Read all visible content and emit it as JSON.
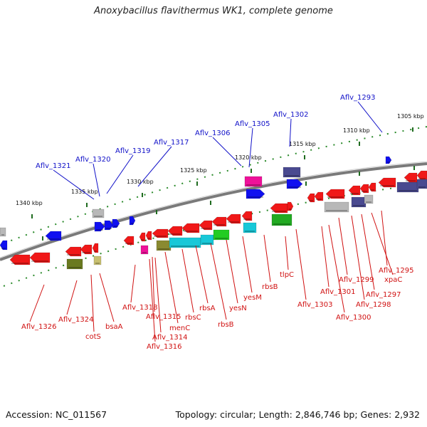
{
  "title": "Anoxybacillus flavithermus WK1, complete genome",
  "footer": {
    "accession": "Accession: NC_011567",
    "summary": "Topology: circular; Length: 2,846,746 bp; Genes: 2,932"
  },
  "scale_labels": [
    "1305 kbp",
    "1310 kbp",
    "1315 kbp",
    "1320 kbp",
    "1325 kbp",
    "1330 kbp",
    "1335 kbp",
    "1340 kbp"
  ],
  "upper_gene_labels": [
    "Aflv_1293",
    "Aflv_1302",
    "Aflv_1305",
    "Aflv_1306",
    "Aflv_1317",
    "Aflv_1319",
    "Aflv_1320",
    "Aflv_1321"
  ],
  "lower_gene_labels": [
    "Aflv_1295",
    "xpaC",
    "Aflv_1297",
    "Aflv_1298",
    "Aflv_1299",
    "Aflv_1300",
    "Aflv_1301",
    "Aflv_1303",
    "tlpC",
    "rbsB",
    "yesM",
    "yesN",
    "rbsB",
    "rbsA",
    "rbsC",
    "menC",
    "Aflv_1315",
    "Aflv_1314",
    "Aflv_1316",
    "Aflv_1318",
    "bsaA",
    "cotS",
    "Aflv_1324",
    "Aflv_1326"
  ],
  "colors": {
    "upper_label": "#1010c8",
    "lower_label": "#d01010",
    "backbone": "#777777",
    "tick": "#2a8a2a"
  }
}
